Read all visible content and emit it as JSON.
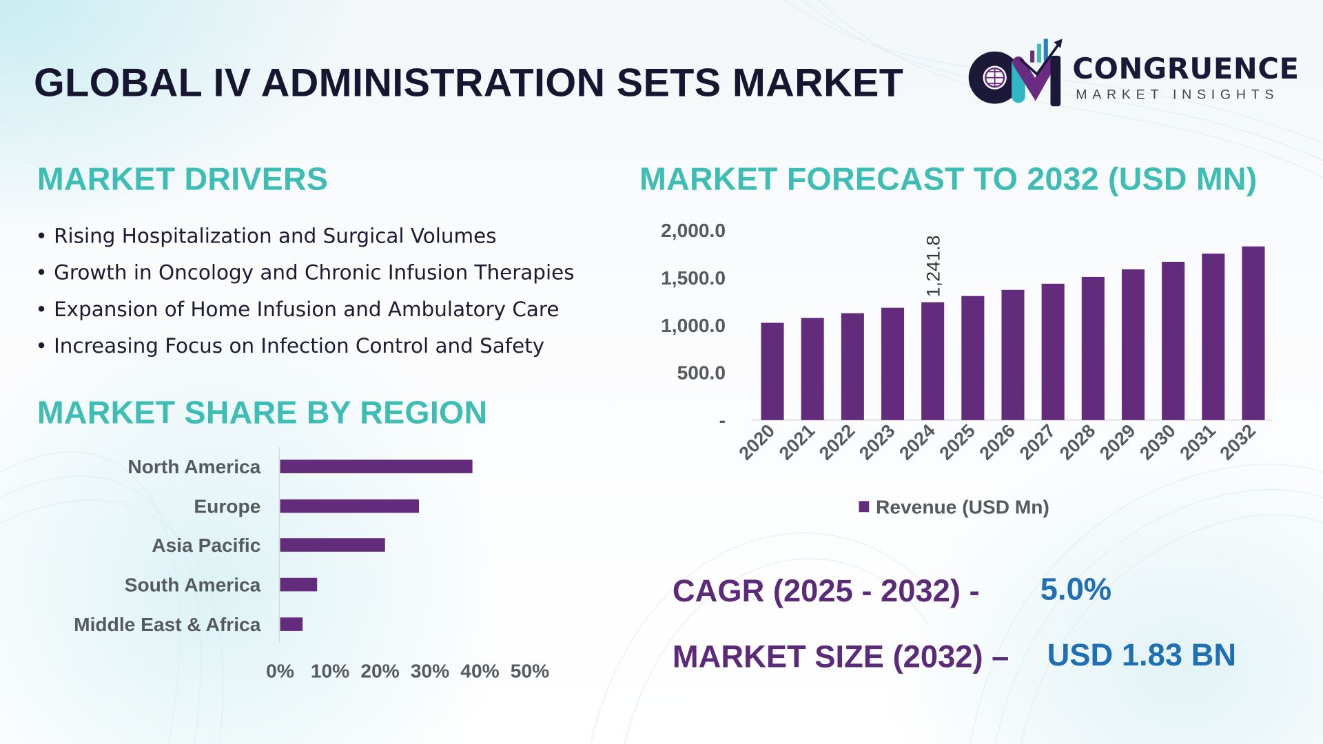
{
  "title": "GLOBAL IV ADMINISTRATION SETS MARKET",
  "logo": {
    "name": "CONGRUENCE",
    "tagline": "MARKET INSIGHTS",
    "monogram": "CM"
  },
  "drivers": {
    "heading": "MARKET DRIVERS",
    "items": [
      "Rising Hospitalization and Surgical Volumes",
      "Growth in Oncology and Chronic Infusion Therapies",
      "Expansion of Home Infusion and Ambulatory Care",
      "Increasing Focus on Infection Control and Safety"
    ]
  },
  "region": {
    "heading": "MARKET SHARE BY REGION"
  },
  "forecast": {
    "heading": "MARKET FORECAST TO 2032 (USD MN)"
  },
  "summary": {
    "cagr_label": "CAGR (2025 - 2032) -",
    "cagr_value": "5.0%",
    "size_label": "MARKET SIZE (2032) –",
    "size_value": "USD 1.83 BN"
  },
  "colors": {
    "bar": "#632b7c",
    "heading": "#3dbdb3",
    "summary_label": "#5b2a78",
    "summary_value": "#1f6fb4",
    "axis_text": "#555a5e"
  },
  "chart_data": [
    {
      "type": "bar",
      "orientation": "vertical",
      "categories": [
        "2020",
        "2021",
        "2022",
        "2023",
        "2024",
        "2025",
        "2026",
        "2027",
        "2028",
        "2029",
        "2030",
        "2031",
        "2032"
      ],
      "series": [
        {
          "name": "Revenue (USD Mn)",
          "values": [
            1025,
            1076,
            1126,
            1184,
            1241.8,
            1307,
            1372,
            1437,
            1509,
            1588,
            1668,
            1754,
            1830
          ]
        }
      ],
      "data_labels": [
        {
          "category": "2024",
          "text": "1,241.8"
        }
      ],
      "yticks": [
        "-",
        "500.0",
        "1,000.0",
        "1,500.0",
        "2,000.0"
      ],
      "ylim": [
        0,
        2000
      ],
      "legend": "bottom",
      "grid": false
    },
    {
      "type": "bar",
      "orientation": "horizontal",
      "categories": [
        "North America",
        "Europe",
        "Asia Pacific",
        "South America",
        "Middle East & Africa"
      ],
      "values": [
        38.5,
        27.8,
        21.0,
        7.4,
        4.5
      ],
      "xticks": [
        "0%",
        "10%",
        "20%",
        "30%",
        "40%",
        "50%"
      ],
      "xlim": [
        0,
        50
      ],
      "grid": false
    }
  ]
}
